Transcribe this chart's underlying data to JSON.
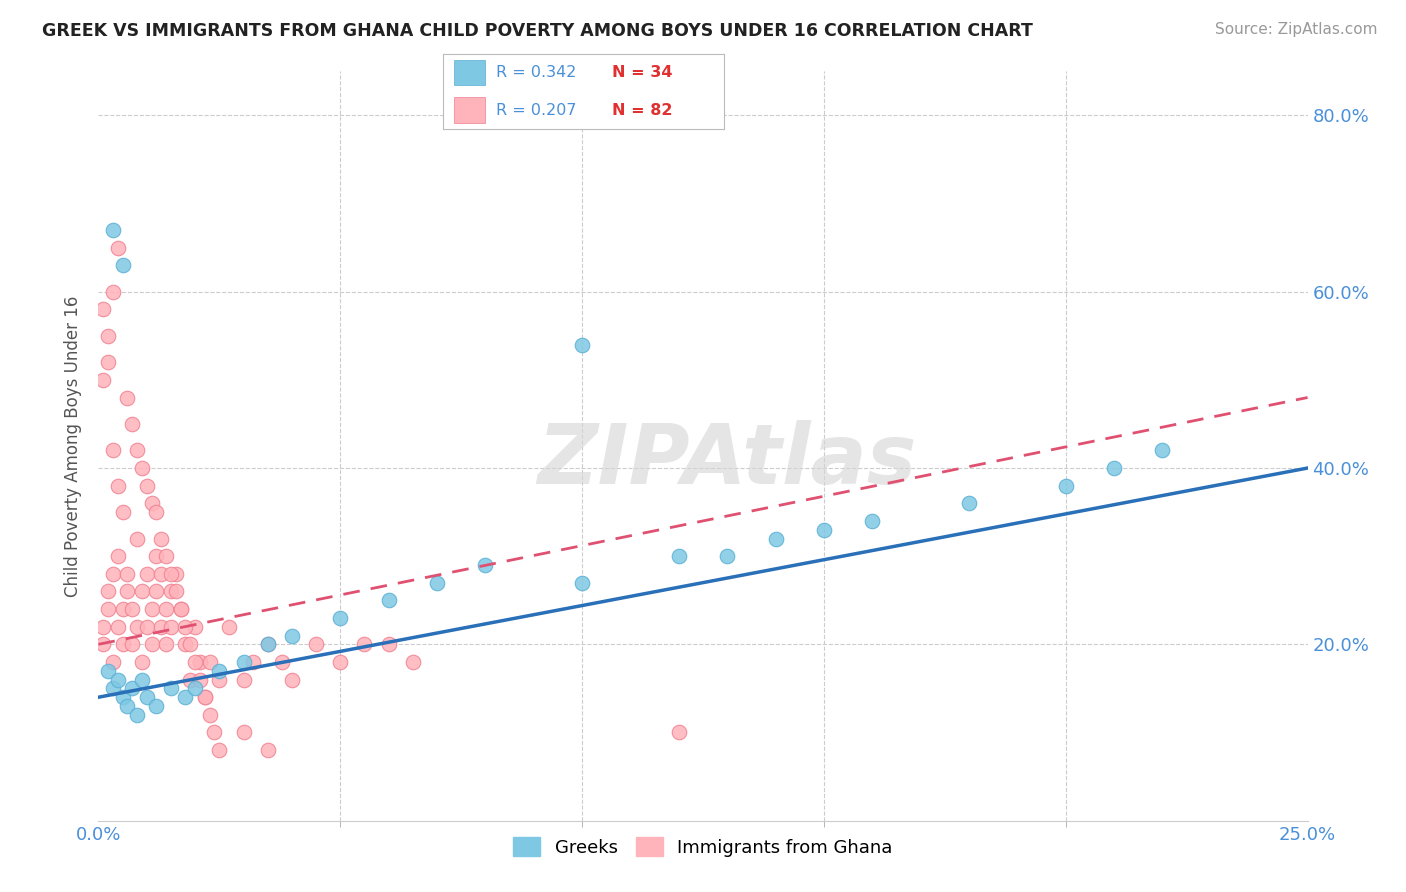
{
  "title": "GREEK VS IMMIGRANTS FROM GHANA CHILD POVERTY AMONG BOYS UNDER 16 CORRELATION CHART",
  "source": "Source: ZipAtlas.com",
  "ylabel": "Child Poverty Among Boys Under 16",
  "xlim": [
    0.0,
    0.25
  ],
  "ylim": [
    0.0,
    0.85
  ],
  "xtick_positions": [
    0.0,
    0.25
  ],
  "xtick_labels": [
    "0.0%",
    "25.0%"
  ],
  "ytick_values": [
    0.2,
    0.4,
    0.6,
    0.8
  ],
  "ytick_labels": [
    "20.0%",
    "40.0%",
    "60.0%",
    "80.0%"
  ],
  "series1_color": "#7ec8e3",
  "series1_edge": "#5aafd4",
  "series2_color": "#ffb3ba",
  "series2_edge": "#f08090",
  "series1_label": "Greeks",
  "series2_label": "Immigrants from Ghana",
  "series1_R": "0.342",
  "series1_N": "34",
  "series2_R": "0.207",
  "series2_N": "82",
  "trendline1_color": "#2970b8",
  "trendline2_color": "#e05070",
  "legend_R_color": "#4a90d9",
  "legend_N_color": "#e03030",
  "watermark": "ZIPAtlas",
  "watermark_color": "#d5d5d5",
  "greek_x": [
    0.002,
    0.003,
    0.004,
    0.005,
    0.006,
    0.007,
    0.008,
    0.009,
    0.01,
    0.012,
    0.015,
    0.018,
    0.02,
    0.025,
    0.03,
    0.035,
    0.04,
    0.05,
    0.06,
    0.07,
    0.08,
    0.1,
    0.12,
    0.14,
    0.16,
    0.18,
    0.2,
    0.21,
    0.22,
    0.1,
    0.13,
    0.15,
    0.005,
    0.003
  ],
  "greek_y": [
    0.17,
    0.15,
    0.16,
    0.14,
    0.13,
    0.15,
    0.12,
    0.16,
    0.14,
    0.13,
    0.15,
    0.14,
    0.15,
    0.17,
    0.18,
    0.2,
    0.21,
    0.23,
    0.25,
    0.27,
    0.29,
    0.27,
    0.3,
    0.32,
    0.34,
    0.36,
    0.38,
    0.4,
    0.42,
    0.54,
    0.3,
    0.33,
    0.63,
    0.67
  ],
  "ghana_x": [
    0.001,
    0.001,
    0.002,
    0.002,
    0.003,
    0.003,
    0.004,
    0.004,
    0.005,
    0.005,
    0.006,
    0.006,
    0.007,
    0.007,
    0.008,
    0.008,
    0.009,
    0.009,
    0.01,
    0.01,
    0.011,
    0.011,
    0.012,
    0.012,
    0.013,
    0.013,
    0.014,
    0.014,
    0.015,
    0.015,
    0.016,
    0.017,
    0.018,
    0.019,
    0.02,
    0.021,
    0.022,
    0.023,
    0.025,
    0.027,
    0.03,
    0.032,
    0.035,
    0.038,
    0.04,
    0.045,
    0.05,
    0.055,
    0.06,
    0.065,
    0.003,
    0.004,
    0.005,
    0.006,
    0.007,
    0.008,
    0.009,
    0.01,
    0.011,
    0.012,
    0.013,
    0.014,
    0.015,
    0.016,
    0.017,
    0.018,
    0.019,
    0.02,
    0.021,
    0.022,
    0.023,
    0.024,
    0.025,
    0.001,
    0.002,
    0.003,
    0.004,
    0.001,
    0.002,
    0.03,
    0.035,
    0.12
  ],
  "ghana_y": [
    0.2,
    0.22,
    0.24,
    0.26,
    0.18,
    0.28,
    0.22,
    0.3,
    0.24,
    0.2,
    0.26,
    0.28,
    0.24,
    0.2,
    0.22,
    0.32,
    0.18,
    0.26,
    0.22,
    0.28,
    0.24,
    0.2,
    0.3,
    0.26,
    0.22,
    0.28,
    0.24,
    0.2,
    0.22,
    0.26,
    0.28,
    0.24,
    0.2,
    0.16,
    0.22,
    0.18,
    0.14,
    0.18,
    0.16,
    0.22,
    0.16,
    0.18,
    0.2,
    0.18,
    0.16,
    0.2,
    0.18,
    0.2,
    0.2,
    0.18,
    0.42,
    0.38,
    0.35,
    0.48,
    0.45,
    0.42,
    0.4,
    0.38,
    0.36,
    0.35,
    0.32,
    0.3,
    0.28,
    0.26,
    0.24,
    0.22,
    0.2,
    0.18,
    0.16,
    0.14,
    0.12,
    0.1,
    0.08,
    0.58,
    0.55,
    0.6,
    0.65,
    0.5,
    0.52,
    0.1,
    0.08,
    0.1
  ]
}
